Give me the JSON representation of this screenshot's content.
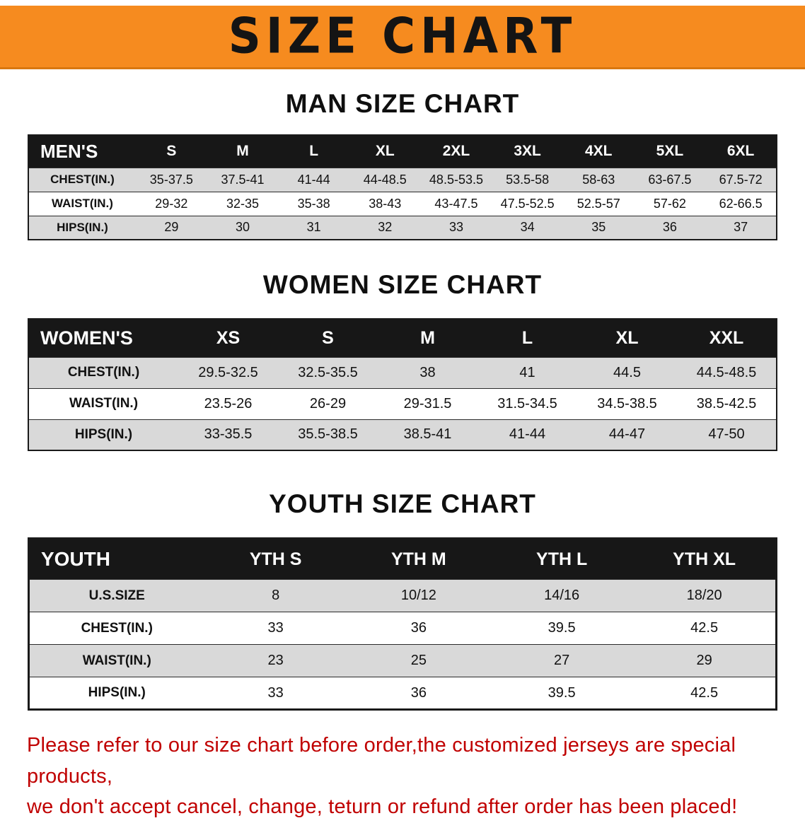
{
  "banner": {
    "title": "SIZE CHART"
  },
  "colors": {
    "banner_bg": "#f68b1f",
    "table_header_bg": "#171717",
    "row_alt_gray": "#d9d9d9",
    "disclaimer_red": "#c00000"
  },
  "chart_data": [
    {
      "type": "table",
      "title": "MAN SIZE CHART",
      "group_label": "MEN'S",
      "columns": [
        "MEN'S",
        "S",
        "M",
        "L",
        "XL",
        "2XL",
        "3XL",
        "4XL",
        "5XL",
        "6XL"
      ],
      "rows": [
        [
          "CHEST(IN.)",
          "35-37.5",
          "37.5-41",
          "41-44",
          "44-48.5",
          "48.5-53.5",
          "53.5-58",
          "58-63",
          "63-67.5",
          "67.5-72"
        ],
        [
          "WAIST(IN.)",
          "29-32",
          "32-35",
          "35-38",
          "38-43",
          "43-47.5",
          "47.5-52.5",
          "52.5-57",
          "57-62",
          "62-66.5"
        ],
        [
          "HIPS(IN.)",
          "29",
          "30",
          "31",
          "32",
          "33",
          "34",
          "35",
          "36",
          "37"
        ]
      ]
    },
    {
      "type": "table",
      "title": "WOMEN SIZE CHART",
      "group_label": "WOMEN'S",
      "columns": [
        "WOMEN'S",
        "XS",
        "S",
        "M",
        "L",
        "XL",
        "XXL"
      ],
      "rows": [
        [
          "CHEST(IN.)",
          "29.5-32.5",
          "32.5-35.5",
          "38",
          "41",
          "44.5",
          "44.5-48.5"
        ],
        [
          "WAIST(IN.)",
          "23.5-26",
          "26-29",
          "29-31.5",
          "31.5-34.5",
          "34.5-38.5",
          "38.5-42.5"
        ],
        [
          "HIPS(IN.)",
          "33-35.5",
          "35.5-38.5",
          "38.5-41",
          "41-44",
          "44-47",
          "47-50"
        ]
      ]
    },
    {
      "type": "table",
      "title": "YOUTH SIZE CHART",
      "group_label": "YOUTH",
      "columns": [
        "YOUTH",
        "YTH S",
        "YTH M",
        "YTH L",
        "YTH XL"
      ],
      "rows": [
        [
          "U.S.SIZE",
          "8",
          "10/12",
          "14/16",
          "18/20"
        ],
        [
          "CHEST(IN.)",
          "33",
          "36",
          "39.5",
          "42.5"
        ],
        [
          "WAIST(IN.)",
          "23",
          "25",
          "27",
          "29"
        ],
        [
          "HIPS(IN.)",
          "33",
          "36",
          "39.5",
          "42.5"
        ]
      ]
    }
  ],
  "disclaimer": {
    "line1": "Please refer to our size chart before order,the customized jerseys are special products,",
    "line2": "we don't accept cancel, change, teturn or refund after order has been placed!"
  }
}
